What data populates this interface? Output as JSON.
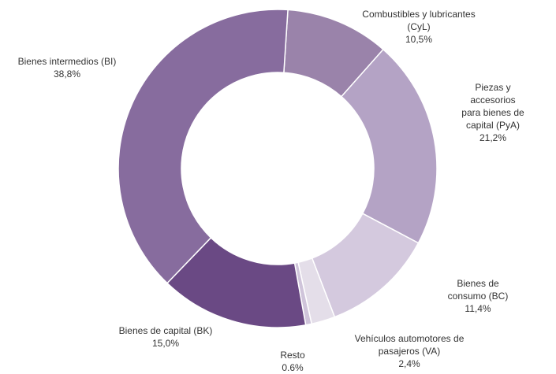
{
  "chart_data": {
    "type": "donut",
    "categories": [
      "Combustibles y lubricantes (CyL)",
      "Piezas y accesorios para bienes de capital (PyA)",
      "Bienes de consumo (BC)",
      "Vehículos automotores de pasajeros (VA)",
      "Resto",
      "Bienes de capital (BK)",
      "Bienes intermedios (BI)"
    ],
    "values": [
      10.5,
      21.2,
      11.4,
      2.4,
      0.6,
      15.0,
      38.8
    ],
    "value_labels": [
      "10,5%",
      "21,2%",
      "11,4%",
      "2,4%",
      "0.6%",
      "15,0%",
      "38,8%"
    ],
    "colors": [
      "#9a83aa",
      "#b4a3c5",
      "#d4c9de",
      "#e4dee9",
      "#cfc4da",
      "#6a4984",
      "#876c9e"
    ]
  }
}
